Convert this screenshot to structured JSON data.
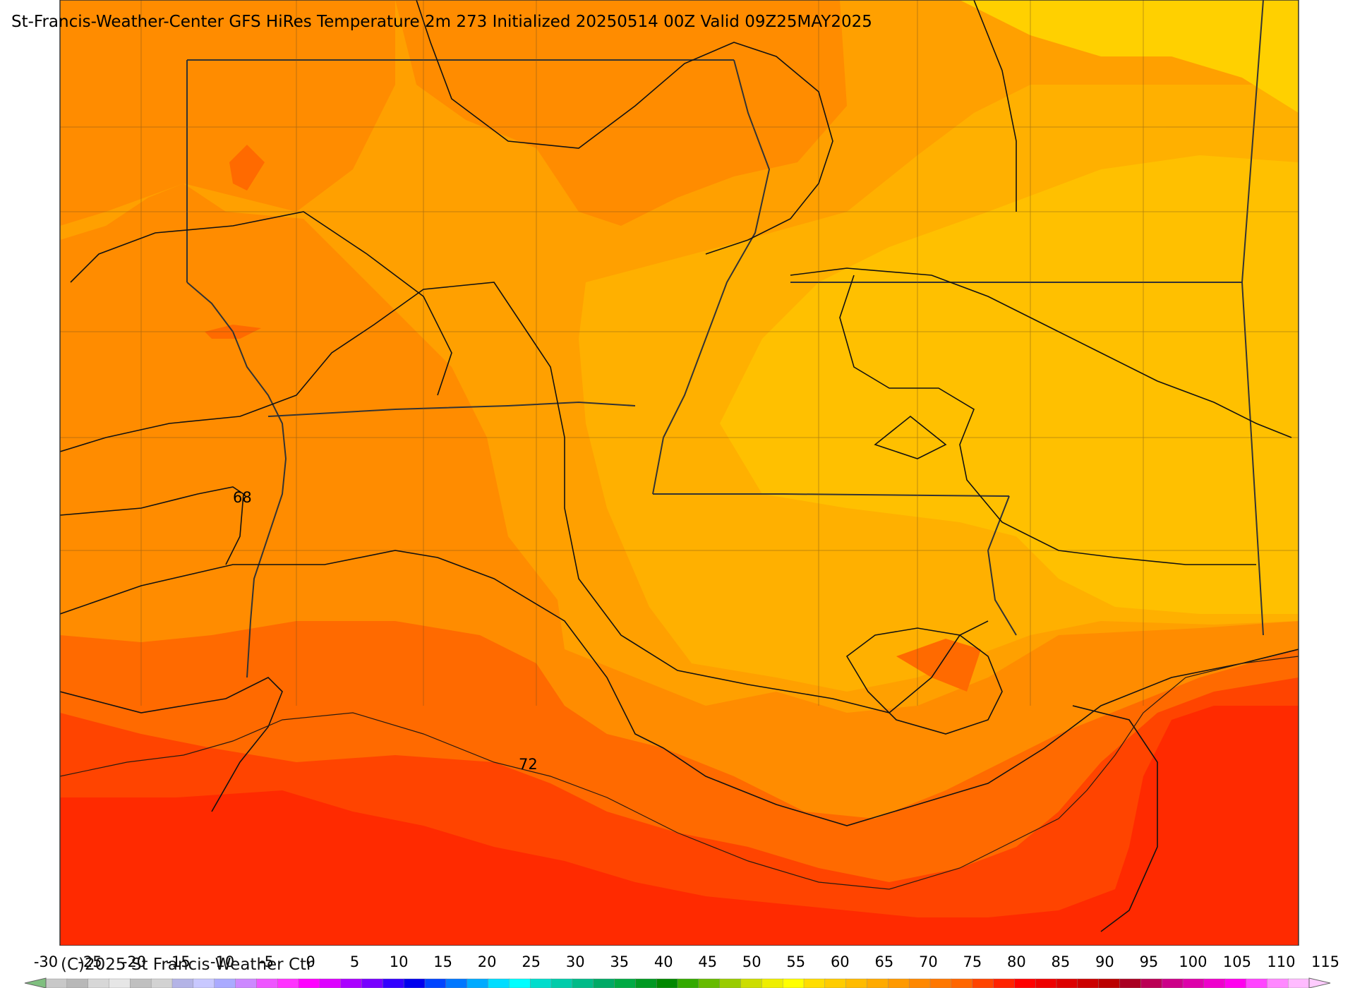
{
  "title": "St-Francis-Weather-Center GFS HiRes Temperature 2m  273 Initialized 20250514 00Z Valid 09Z25MAY2025",
  "copyright": "(C)2025 St Francis Weather Ctr",
  "contour_labels": [
    "68",
    "72"
  ],
  "colorbar": {
    "labels": [
      "-30",
      "-25",
      "-20",
      "-15",
      "-10",
      "-5",
      "0",
      "5",
      "10",
      "15",
      "20",
      "25",
      "30",
      "35",
      "40",
      "45",
      "50",
      "55",
      "60",
      "65",
      "70",
      "75",
      "80",
      "85",
      "90",
      "95",
      "100",
      "105",
      "110",
      "115"
    ],
    "colors": [
      "#c8c8c8",
      "#b8b8b8",
      "#d7d7d7",
      "#e6e6e6",
      "#c0c0c0",
      "#d2d2d2",
      "#b4b4e6",
      "#c8c8ff",
      "#aaaaff",
      "#cc88ff",
      "#ee55ff",
      "#ff33ff",
      "#ff00ff",
      "#dd00ff",
      "#aa00ff",
      "#7700ff",
      "#3300ff",
      "#0000ee",
      "#0044ff",
      "#0077ff",
      "#00aaff",
      "#00ddff",
      "#00ffff",
      "#00ddcc",
      "#00ccaa",
      "#00bb88",
      "#00aa66",
      "#00aa44",
      "#009922",
      "#008800",
      "#33aa00",
      "#66bb00",
      "#99cc00",
      "#ccdd00",
      "#eeee00",
      "#ffff00",
      "#ffdd00",
      "#ffcc00",
      "#ffbb00",
      "#ffaa00",
      "#ff9900",
      "#ff8800",
      "#ff7700",
      "#ff6600",
      "#ff4400",
      "#ff2200",
      "#ff0000",
      "#ee0000",
      "#dd0000",
      "#cc0000",
      "#bb0000",
      "#aa0022",
      "#bb0055",
      "#cc0088",
      "#dd00aa",
      "#ee00cc",
      "#ff00ee",
      "#ff44ff",
      "#ff88ff",
      "#ffbbff"
    ],
    "arrow_left_color": "#7fbf7f",
    "arrow_right_color": "#ffccff"
  },
  "fill_colors": {
    "deep_red": "#ff2a00",
    "red_orange": "#ff4400",
    "orange_red": "#ff6a00",
    "dark_orange": "#ff8c00",
    "orange": "#ffa000",
    "light_orange": "#ffb000",
    "amber": "#ffc000",
    "yellow": "#ffd000"
  }
}
